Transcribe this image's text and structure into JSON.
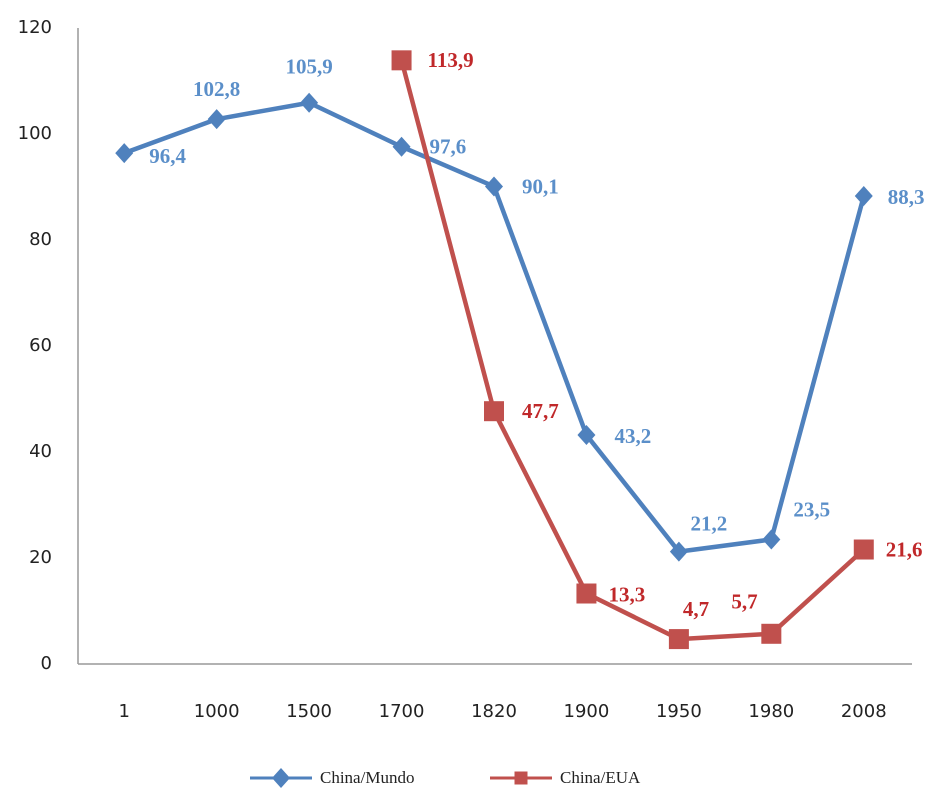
{
  "chart_data": {
    "type": "line",
    "categories": [
      "1",
      "1000",
      "1500",
      "1700",
      "1820",
      "1900",
      "1950",
      "1980",
      "2008"
    ],
    "series": [
      {
        "name": "China/Mundo",
        "color": "#4f81bd",
        "marker": "diamond",
        "values": [
          96.4,
          102.8,
          105.9,
          97.6,
          90.1,
          43.2,
          21.2,
          23.5,
          88.3
        ],
        "value_labels": [
          "96,4",
          "102,8",
          "105,9",
          "97,6",
          "90,1",
          "43,2",
          "21,2",
          "23,5",
          "88,3"
        ]
      },
      {
        "name": "China/EUA",
        "color": "#c0504d",
        "marker": "square",
        "values": [
          null,
          null,
          null,
          113.9,
          47.7,
          13.3,
          4.7,
          5.7,
          21.6
        ],
        "value_labels": [
          null,
          null,
          null,
          "113,9",
          "47,7",
          "13,3",
          "4,7",
          "5,7",
          "21,6"
        ]
      }
    ],
    "ylim": [
      0,
      120
    ],
    "yticks": [
      0,
      20,
      40,
      60,
      80,
      100,
      120
    ],
    "grid": false,
    "legend": "bottom"
  }
}
